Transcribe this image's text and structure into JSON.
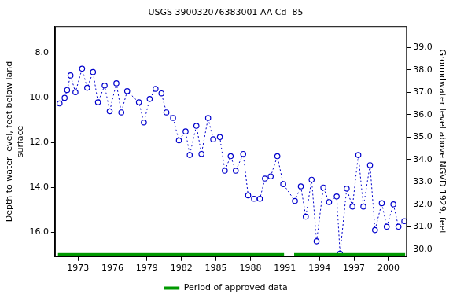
{
  "chart_data": {
    "type": "line",
    "title": "USGS 390032076383001 AA Cd  85",
    "ylabel": [
      "Depth to water level, feet below land",
      "surface"
    ],
    "y2label": "Groundwater level above NGVD 1929, feet",
    "x": [
      1971.4,
      1971.84,
      1972.06,
      1972.35,
      1972.78,
      1973.36,
      1973.8,
      1974.31,
      1974.74,
      1975.32,
      1975.76,
      1976.34,
      1976.77,
      1977.28,
      1978.3,
      1978.73,
      1979.24,
      1979.75,
      1980.26,
      1980.69,
      1981.27,
      1981.78,
      1982.36,
      1982.72,
      1983.3,
      1983.74,
      1984.32,
      1984.76,
      1985.34,
      1985.77,
      1986.28,
      1986.72,
      1987.37,
      1987.8,
      1988.31,
      1988.82,
      1989.26,
      1989.76,
      1990.34,
      1990.85,
      1991.87,
      1992.38,
      1992.81,
      1993.32,
      1993.75,
      1994.34,
      1994.84,
      1995.5,
      1995.79,
      1996.37,
      1996.87,
      1997.38,
      1997.82,
      1998.4,
      1998.83,
      1999.42,
      1999.85,
      2000.43,
      2000.87,
      2001.38
    ],
    "series": [
      {
        "color": "#0000cc",
        "marker": "circle",
        "line_style": "dotted",
        "values": [
          10.25,
          10.0,
          9.65,
          9.0,
          9.75,
          8.7,
          9.55,
          8.85,
          10.2,
          9.45,
          10.6,
          9.35,
          10.65,
          9.7,
          10.2,
          11.1,
          10.05,
          9.6,
          9.8,
          10.65,
          10.9,
          11.9,
          11.5,
          12.55,
          11.25,
          12.5,
          10.9,
          11.85,
          11.75,
          13.25,
          12.6,
          13.25,
          12.5,
          14.35,
          14.5,
          14.5,
          13.6,
          13.5,
          12.6,
          13.85,
          14.6,
          13.95,
          15.3,
          13.65,
          16.4,
          14.0,
          14.65,
          14.4,
          16.95,
          14.05,
          14.85,
          12.55,
          14.85,
          13.0,
          15.9,
          14.7,
          15.75,
          14.75,
          15.75,
          15.5
        ]
      }
    ],
    "approved_periods": {
      "name": "Period of approved data",
      "color": "#009900",
      "ranges": [
        [
          1971.26,
          1990.92
        ],
        [
          1991.8,
          2001.45
        ]
      ]
    },
    "xlim": [
      1971.0,
      2001.6
    ],
    "xticks": [
      1973,
      1976,
      1979,
      1982,
      1985,
      1988,
      1991,
      1994,
      1997,
      2000
    ],
    "ylim": [
      17.1,
      6.8
    ],
    "yticks": [
      {
        "value": 8,
        "label": "8.0"
      },
      {
        "value": 10,
        "label": "10.0"
      },
      {
        "value": 12,
        "label": "12.0"
      },
      {
        "value": 14,
        "label": "14.0"
      },
      {
        "value": 16,
        "label": "16.0"
      }
    ],
    "y2lim": [
      29.65,
      39.95
    ],
    "y2ticks": [
      {
        "value": 30,
        "label": "30.0"
      },
      {
        "value": 31,
        "label": "31.0"
      },
      {
        "value": 32,
        "label": "32.0"
      },
      {
        "value": 33,
        "label": "33.0"
      },
      {
        "value": 34,
        "label": "34.0"
      },
      {
        "value": 35,
        "label": "35.0"
      },
      {
        "value": 36,
        "label": "36.0"
      },
      {
        "value": 37,
        "label": "37.0"
      },
      {
        "value": 38,
        "label": "38.0"
      },
      {
        "value": 39,
        "label": "39.0"
      }
    ],
    "grid": false,
    "legend": "bottom"
  }
}
